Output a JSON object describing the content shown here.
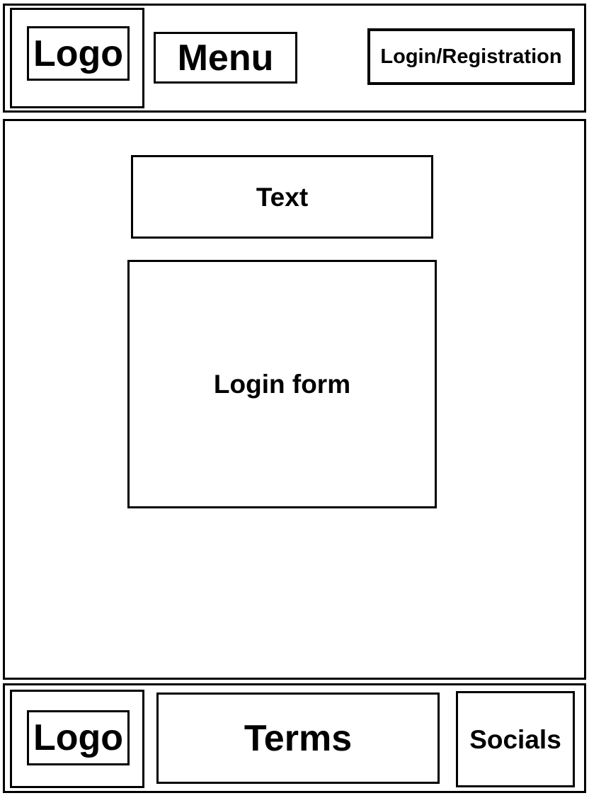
{
  "header": {
    "logo_label": "Logo",
    "menu_label": "Menu",
    "login_registration_label": "Login/Registration"
  },
  "main": {
    "text_label": "Text",
    "login_form_label": "Login form"
  },
  "footer": {
    "logo_label": "Logo",
    "terms_label": "Terms",
    "socials_label": "Socials"
  }
}
